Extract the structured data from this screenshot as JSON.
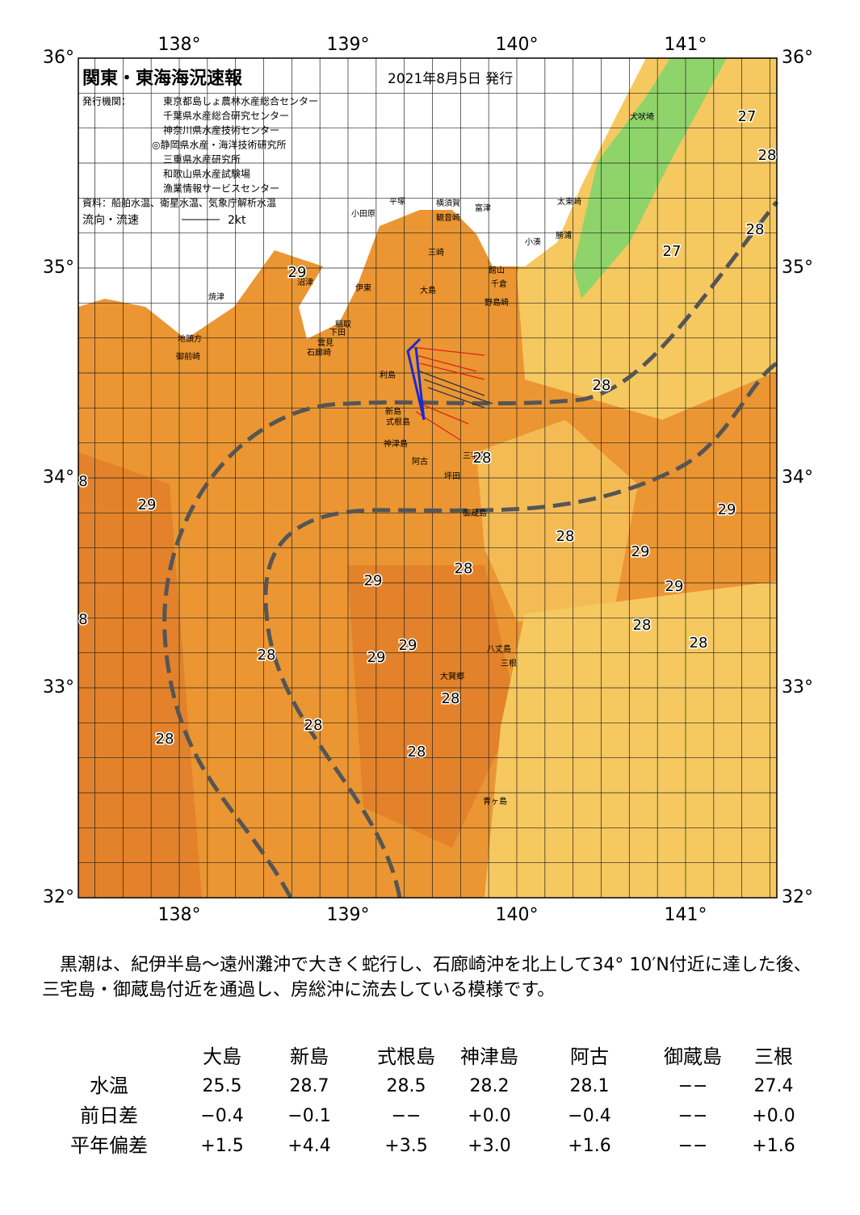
{
  "map": {
    "title": "関東・東海海況速報",
    "date": "2021年8月5日 発行",
    "publisher_label": "発行機関：",
    "publishers": [
      "東京都島しょ農林水産総合センター",
      "千葉県水産総合研究センター",
      "神奈川県水産技術センター",
      "◎静岡県水産・海洋技術研究所",
      "三重県水産研究所",
      "和歌山県水産試験場",
      "漁業情報サービスセンター"
    ],
    "source": "資料：船舶水温、衛星水温、気象庁解析水温",
    "legend_label": "流向・流速",
    "legend_scale": "2kt",
    "lon_ticks": [
      {
        "value": 138,
        "label": "138°"
      },
      {
        "value": 139,
        "label": "139°"
      },
      {
        "value": 140,
        "label": "140°"
      },
      {
        "value": 141,
        "label": "141°"
      }
    ],
    "lat_ticks": [
      {
        "value": 32,
        "label": "32°"
      },
      {
        "value": 33,
        "label": "33°"
      },
      {
        "value": 34,
        "label": "34°"
      },
      {
        "value": 35,
        "label": "35°"
      },
      {
        "value": 36,
        "label": "36°"
      }
    ],
    "places": [
      "犬吠埼",
      "太東崎",
      "勝浦",
      "小湊",
      "富津",
      "観音崎",
      "横須賀",
      "平塚",
      "三崎",
      "小田原",
      "館山",
      "千倉",
      "野島崎",
      "大島",
      "伊東",
      "稲取",
      "下田",
      "雲見",
      "石廊崎",
      "沼津",
      "焼津",
      "地頭方",
      "御前崎",
      "利島",
      "新島",
      "式根島",
      "神津島",
      "三宅島",
      "阿古",
      "坪田",
      "御蔵島",
      "八丈島",
      "三根",
      "大賀郷",
      "青ヶ島"
    ],
    "isotherms": [
      "27",
      "28",
      "28",
      "27",
      "29",
      "28",
      "28",
      "8",
      "29",
      "29",
      "28",
      "29",
      "28",
      "29",
      "29",
      "8",
      "28",
      "28",
      "29",
      "29",
      "28",
      "28",
      "28",
      "28",
      "28"
    ]
  },
  "text": {
    "paragraph": "黒潮は、紀伊半島～遠州灘沖で大きく蛇行し、石廊崎沖を北上して34° 10′N付近に達した後、三宅島・御蔵島付近を通過し、房総沖に流去している模様です。"
  },
  "table": {
    "columns": [
      "大島",
      "新島",
      "式根島",
      "神津島",
      "阿古",
      "御蔵島",
      "三根"
    ],
    "rows": [
      {
        "label": "水温",
        "cells": [
          "25.5",
          "28.7",
          "28.5",
          "28.2",
          "28.1",
          "−−",
          "27.4"
        ]
      },
      {
        "label": "前日差",
        "cells": [
          "−0.4",
          "−0.1",
          "−−",
          "+0.0",
          "−0.4",
          "−−",
          "+0.0"
        ]
      },
      {
        "label": "平年偏差",
        "cells": [
          "+1.5",
          "+4.4",
          "+3.5",
          "+3.0",
          "+1.6",
          "−−",
          "+1.6"
        ]
      }
    ]
  }
}
